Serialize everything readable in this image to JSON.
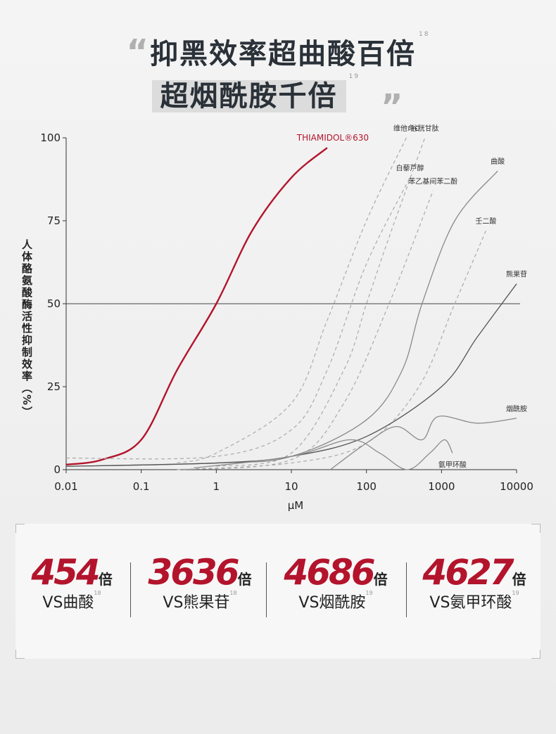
{
  "headline": {
    "open_quote": "“",
    "line1": "抑黑效率超曲酸百倍",
    "ref1": "18",
    "line2": "超烟酰胺千倍",
    "ref2": "19",
    "close_quote": "”"
  },
  "chart_data": {
    "type": "line",
    "xscale": "log",
    "y_label": "人体酪氨酸酶活性抑制效率（%）",
    "x_label": "μM",
    "xlim": [
      0.01,
      10000
    ],
    "xticks": [
      0.01,
      0.1,
      1,
      10,
      100,
      1000,
      10000
    ],
    "ylim": [
      0,
      100
    ],
    "yticks": [
      0,
      25,
      50,
      75,
      100
    ],
    "reference_line": 50,
    "series": [
      {
        "name": "THIAMIDOL®630",
        "color": "#b3142c",
        "dashed": false,
        "width": 2.4,
        "x": [
          0.01,
          0.03,
          0.1,
          0.3,
          1,
          3,
          10,
          30
        ],
        "values": [
          1.5,
          3,
          9,
          30,
          50,
          72,
          88,
          97
        ]
      },
      {
        "name": "维他命C",
        "color": "#aaaaaa",
        "dashed": true,
        "width": 1.2,
        "x": [
          0.3,
          1,
          10,
          30,
          100,
          340
        ],
        "values": [
          2,
          5,
          20,
          45,
          75,
          100
        ]
      },
      {
        "name": "谷胱甘肽",
        "color": "#aaaaaa",
        "dashed": true,
        "width": 1.2,
        "x": [
          1,
          10,
          50,
          100,
          200,
          600
        ],
        "values": [
          1,
          5,
          30,
          50,
          70,
          100
        ]
      },
      {
        "name": "白藜芦醇",
        "color": "#aaaaaa",
        "dashed": true,
        "width": 1.2,
        "x": [
          0.01,
          1,
          10,
          30,
          100,
          380
        ],
        "values": [
          3.5,
          4,
          12,
          30,
          62,
          88
        ]
      },
      {
        "name": "苯乙基间苯二酚",
        "color": "#aaaaaa",
        "dashed": true,
        "width": 1.2,
        "x": [
          0.3,
          10,
          50,
          200,
          770
        ],
        "values": [
          0,
          3,
          20,
          50,
          84
        ]
      },
      {
        "name": "曲酸",
        "color": "#8a8a8a",
        "dashed": false,
        "width": 1.3,
        "x": [
          0.01,
          1,
          10,
          100,
          300,
          550,
          1500,
          5600
        ],
        "values": [
          1,
          2,
          4,
          15,
          30,
          50,
          75,
          90
        ]
      },
      {
        "name": "壬二酸",
        "color": "#aaaaaa",
        "dashed": true,
        "width": 1.2,
        "x": [
          0.3,
          10,
          100,
          500,
          1500,
          3900
        ],
        "values": [
          0,
          2,
          8,
          25,
          50,
          72
        ]
      },
      {
        "name": "熊果苷",
        "color": "#555555",
        "dashed": false,
        "width": 1.3,
        "x": [
          0.01,
          1,
          10,
          100,
          1000,
          3000,
          10000
        ],
        "values": [
          1,
          2,
          4,
          10,
          25,
          40,
          56
        ]
      },
      {
        "name": "烟酰胺",
        "color": "#8a8a8a",
        "dashed": false,
        "width": 1.3,
        "x": [
          33,
          100,
          250,
          550,
          900,
          3000,
          10000
        ],
        "values": [
          0,
          8,
          13,
          9,
          16,
          14,
          15.5
        ]
      },
      {
        "name": "氨甲环酸",
        "color": "#8a8a8a",
        "dashed": false,
        "width": 1.3,
        "x": [
          0.5,
          10,
          60,
          150,
          350,
          700,
          1100,
          1400
        ],
        "values": [
          0.5,
          4,
          9,
          5,
          0,
          5,
          9,
          5
        ]
      }
    ]
  },
  "comparisons": [
    {
      "value": "454",
      "unit": "倍",
      "label": "VS曲酸",
      "ref": "18"
    },
    {
      "value": "3636",
      "unit": "倍",
      "label": "VS熊果苷",
      "ref": "18"
    },
    {
      "value": "4686",
      "unit": "倍",
      "label": "VS烟酰胺",
      "ref": "19"
    },
    {
      "value": "4627",
      "unit": "倍",
      "label": "VS氨甲环酸",
      "ref": "19"
    }
  ]
}
